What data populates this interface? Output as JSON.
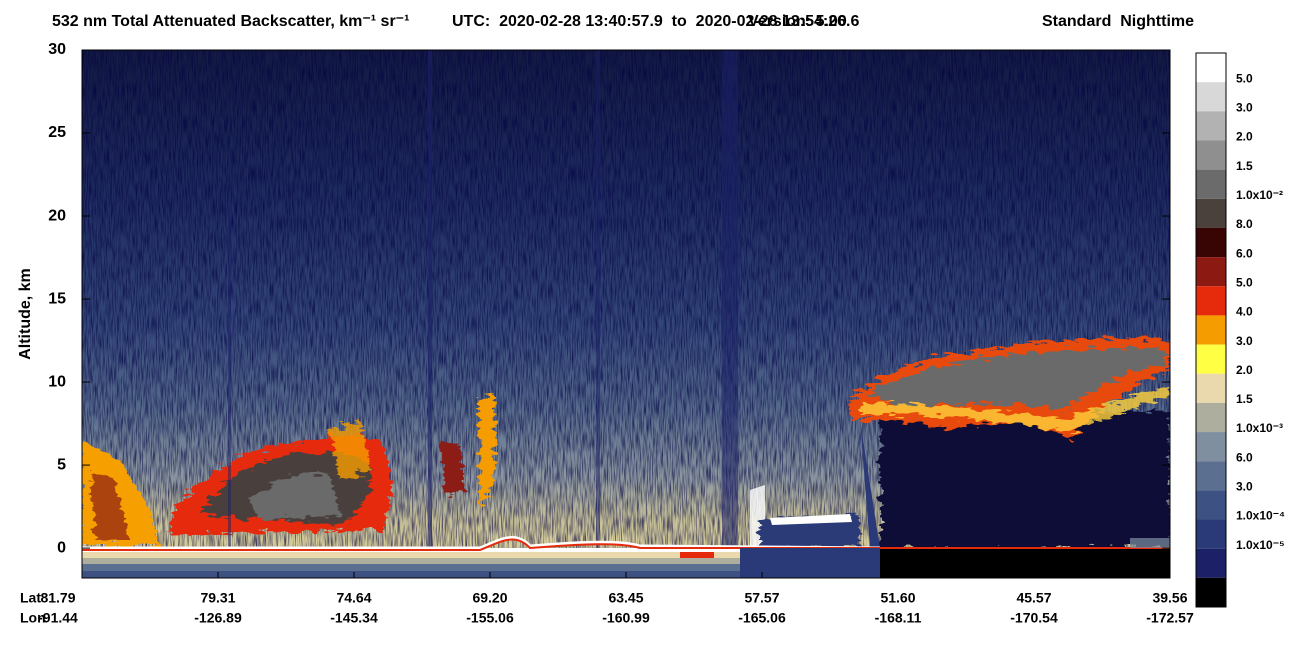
{
  "chart_data": {
    "type": "lidar-curtain",
    "title": "532 nm Total Attenuated Backscatter, km⁻¹ sr⁻¹",
    "time_range": "UTC:  2020-02-28 13:40:57.9  to  2020-02-28 13:54:26.6",
    "version": "Version: 5.00",
    "mode": "Standard  Nighttime",
    "ylabel": "Altitude, km",
    "ylim": [
      -1.8,
      30
    ],
    "yticks": [
      0,
      5,
      10,
      15,
      20,
      25,
      30
    ],
    "lat_label": "Lat",
    "lon_label": "Lon",
    "lat": [
      "81.79",
      "79.31",
      "74.64",
      "69.20",
      "63.45",
      "57.57",
      "51.60",
      "45.57",
      "39.56"
    ],
    "lon": [
      "-91.44",
      "-126.89",
      "-145.34",
      "-155.06",
      "-160.99",
      "-165.06",
      "-168.11",
      "-170.54",
      "-172.57"
    ],
    "colorbar": {
      "colors": [
        "#ffffff",
        "#d8d8d8",
        "#b2b2b2",
        "#8f8f8f",
        "#6b6b6b",
        "#4a403c",
        "#380404",
        "#8c1a12",
        "#e62a0c",
        "#f59c00",
        "#ffff44",
        "#ead9ad",
        "#aeae9e",
        "#7f8fa0",
        "#5b7090",
        "#3d5282",
        "#2a3a78",
        "#1c2066",
        "#000000"
      ],
      "labels": [
        "5.0",
        "3.0",
        "2.0",
        "1.5",
        "1.0x10⁻²",
        "8.0",
        "6.0",
        "5.0",
        "4.0",
        "3.0",
        "2.0",
        "1.5",
        "1.0x10⁻³",
        "6.0",
        "3.0",
        "1.0x10⁻⁴",
        "1.0x10⁻⁵"
      ]
    }
  }
}
